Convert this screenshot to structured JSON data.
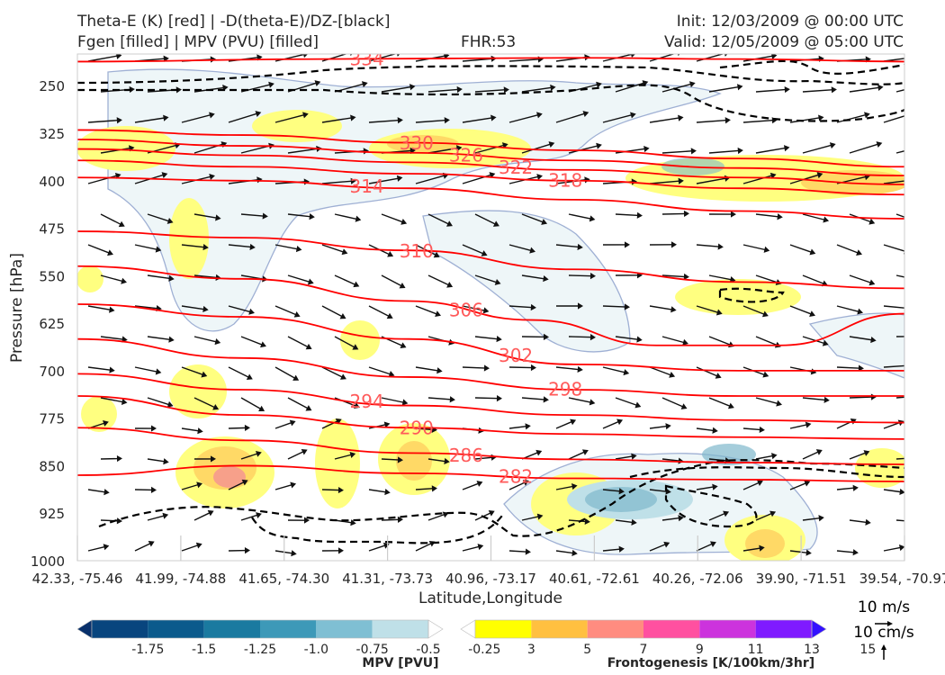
{
  "header": {
    "line1_left": "Theta-E (K) [red] | -D(theta-E)/DZ-[black]",
    "line2_left": "Fgen [filled] | MPV (PVU) [filled]",
    "fhr": "FHR:53",
    "init": "Init: 12/03/2009 @ 00:00 UTC",
    "valid": "Valid: 12/05/2009 @ 05:00 UTC"
  },
  "colors": {
    "theta_e": "#ff0000",
    "theta_e_label": "#ff5a5a",
    "stability": "#000000",
    "mpv_outline": "#9fb0d4",
    "mpv_fill": "#eef6f8",
    "fgen_low": "#ffff80",
    "fgen_mid": "#ffd966",
    "fgen_high": "#f7a08a",
    "mpv_strong": "#7fb8cc"
  },
  "chart_data": {
    "type": "cross-section",
    "xlabel": "Latitude,Longitude",
    "ylabel": "Pressure [hPa]",
    "x_ticks": [
      "42.33, -75.46",
      "41.99, -74.88",
      "41.65, -74.30",
      "41.31, -73.73",
      "40.96, -73.17",
      "40.61, -72.61",
      "40.26, -72.06",
      "39.90, -71.51",
      "39.54, -70.97"
    ],
    "y_ticks": [
      250,
      325,
      400,
      475,
      550,
      625,
      700,
      775,
      850,
      925,
      1000
    ],
    "ylim": [
      1000,
      200
    ],
    "y_axis_inverted": true,
    "theta_e_contours": [
      {
        "label": "334",
        "points": [
          [
            0.0,
            212
          ],
          [
            0.3,
            208
          ],
          [
            0.6,
            206
          ],
          [
            0.8,
            208
          ],
          [
            1.0,
            212
          ]
        ]
      },
      {
        "label": "330",
        "points": [
          [
            0.0,
            320
          ],
          [
            0.2,
            328
          ],
          [
            0.4,
            340
          ],
          [
            0.6,
            352
          ],
          [
            0.8,
            365
          ],
          [
            1.0,
            378
          ]
        ]
      },
      {
        "label": "326",
        "points": [
          [
            0.0,
            335
          ],
          [
            0.2,
            345
          ],
          [
            0.4,
            356
          ],
          [
            0.6,
            368
          ],
          [
            0.8,
            380
          ],
          [
            1.0,
            392
          ]
        ]
      },
      {
        "label": "322",
        "points": [
          [
            0.0,
            350
          ],
          [
            0.2,
            360
          ],
          [
            0.4,
            371
          ],
          [
            0.6,
            383
          ],
          [
            0.8,
            395
          ],
          [
            1.0,
            406
          ]
        ]
      },
      {
        "label": "318",
        "points": [
          [
            0.0,
            368
          ],
          [
            0.2,
            378
          ],
          [
            0.4,
            389
          ],
          [
            0.6,
            400
          ],
          [
            0.8,
            412
          ],
          [
            1.0,
            422
          ]
        ]
      },
      {
        "label": "314",
        "points": [
          [
            0.0,
            395
          ],
          [
            0.2,
            400
          ],
          [
            0.4,
            412
          ],
          [
            0.6,
            430
          ],
          [
            0.8,
            448
          ],
          [
            1.0,
            460
          ]
        ]
      },
      {
        "label": "310",
        "points": [
          [
            0.0,
            480
          ],
          [
            0.2,
            490
          ],
          [
            0.4,
            510
          ],
          [
            0.6,
            540
          ],
          [
            0.8,
            560
          ],
          [
            1.0,
            570
          ]
        ]
      },
      {
        "label": "306",
        "points": [
          [
            0.0,
            535
          ],
          [
            0.2,
            555
          ],
          [
            0.4,
            590
          ],
          [
            0.55,
            620
          ],
          [
            0.7,
            660
          ],
          [
            0.85,
            660
          ],
          [
            1.0,
            610
          ]
        ]
      },
      {
        "label": "302",
        "points": [
          [
            0.0,
            595
          ],
          [
            0.2,
            615
          ],
          [
            0.4,
            650
          ],
          [
            0.6,
            690
          ],
          [
            0.8,
            700
          ],
          [
            1.0,
            700
          ]
        ]
      },
      {
        "label": "298",
        "points": [
          [
            0.0,
            650
          ],
          [
            0.2,
            680
          ],
          [
            0.4,
            710
          ],
          [
            0.6,
            730
          ],
          [
            0.8,
            740
          ],
          [
            1.0,
            740
          ]
        ]
      },
      {
        "label": "294",
        "points": [
          [
            0.0,
            705
          ],
          [
            0.2,
            730
          ],
          [
            0.4,
            755
          ],
          [
            0.6,
            770
          ],
          [
            0.8,
            778
          ],
          [
            1.0,
            782
          ]
        ]
      },
      {
        "label": "290",
        "points": [
          [
            0.0,
            740
          ],
          [
            0.2,
            770
          ],
          [
            0.4,
            790
          ],
          [
            0.6,
            800
          ],
          [
            0.8,
            805
          ],
          [
            1.0,
            808
          ]
        ]
      },
      {
        "label": "286",
        "points": [
          [
            0.0,
            790
          ],
          [
            0.2,
            810
          ],
          [
            0.4,
            830
          ],
          [
            0.6,
            840
          ],
          [
            0.8,
            845
          ],
          [
            1.0,
            848
          ]
        ]
      },
      {
        "label": "282",
        "points": [
          [
            0.0,
            865
          ],
          [
            0.2,
            850
          ],
          [
            0.4,
            862
          ],
          [
            0.6,
            870
          ],
          [
            0.8,
            872
          ],
          [
            1.0,
            875
          ]
        ]
      }
    ],
    "mpv_colorbar": {
      "label": "MPV [PVU]",
      "ticks": [
        "-1.75",
        "-1.5",
        "-1.25",
        "-1.0",
        "-0.75",
        "-0.5",
        "-0.25"
      ],
      "colors": [
        "#08306b",
        "#08457e",
        "#0b5a8c",
        "#1a7aa0",
        "#3d99b8",
        "#7fbfd3",
        "#bfe0e8",
        "#ffffff"
      ]
    },
    "fgen_colorbar": {
      "label": "Frontogenesis [K/100km/3hr]",
      "ticks": [
        "3",
        "5",
        "7",
        "9",
        "11",
        "13",
        "15"
      ],
      "colors": [
        "#ffffff",
        "#ffff00",
        "#ffc040",
        "#ff8c80",
        "#ff50a0",
        "#cc33dd",
        "#7f1aff",
        "#3311ff"
      ]
    },
    "wind_reference": {
      "horizontal": "10 m/s",
      "vertical": "10 cm/s"
    }
  }
}
